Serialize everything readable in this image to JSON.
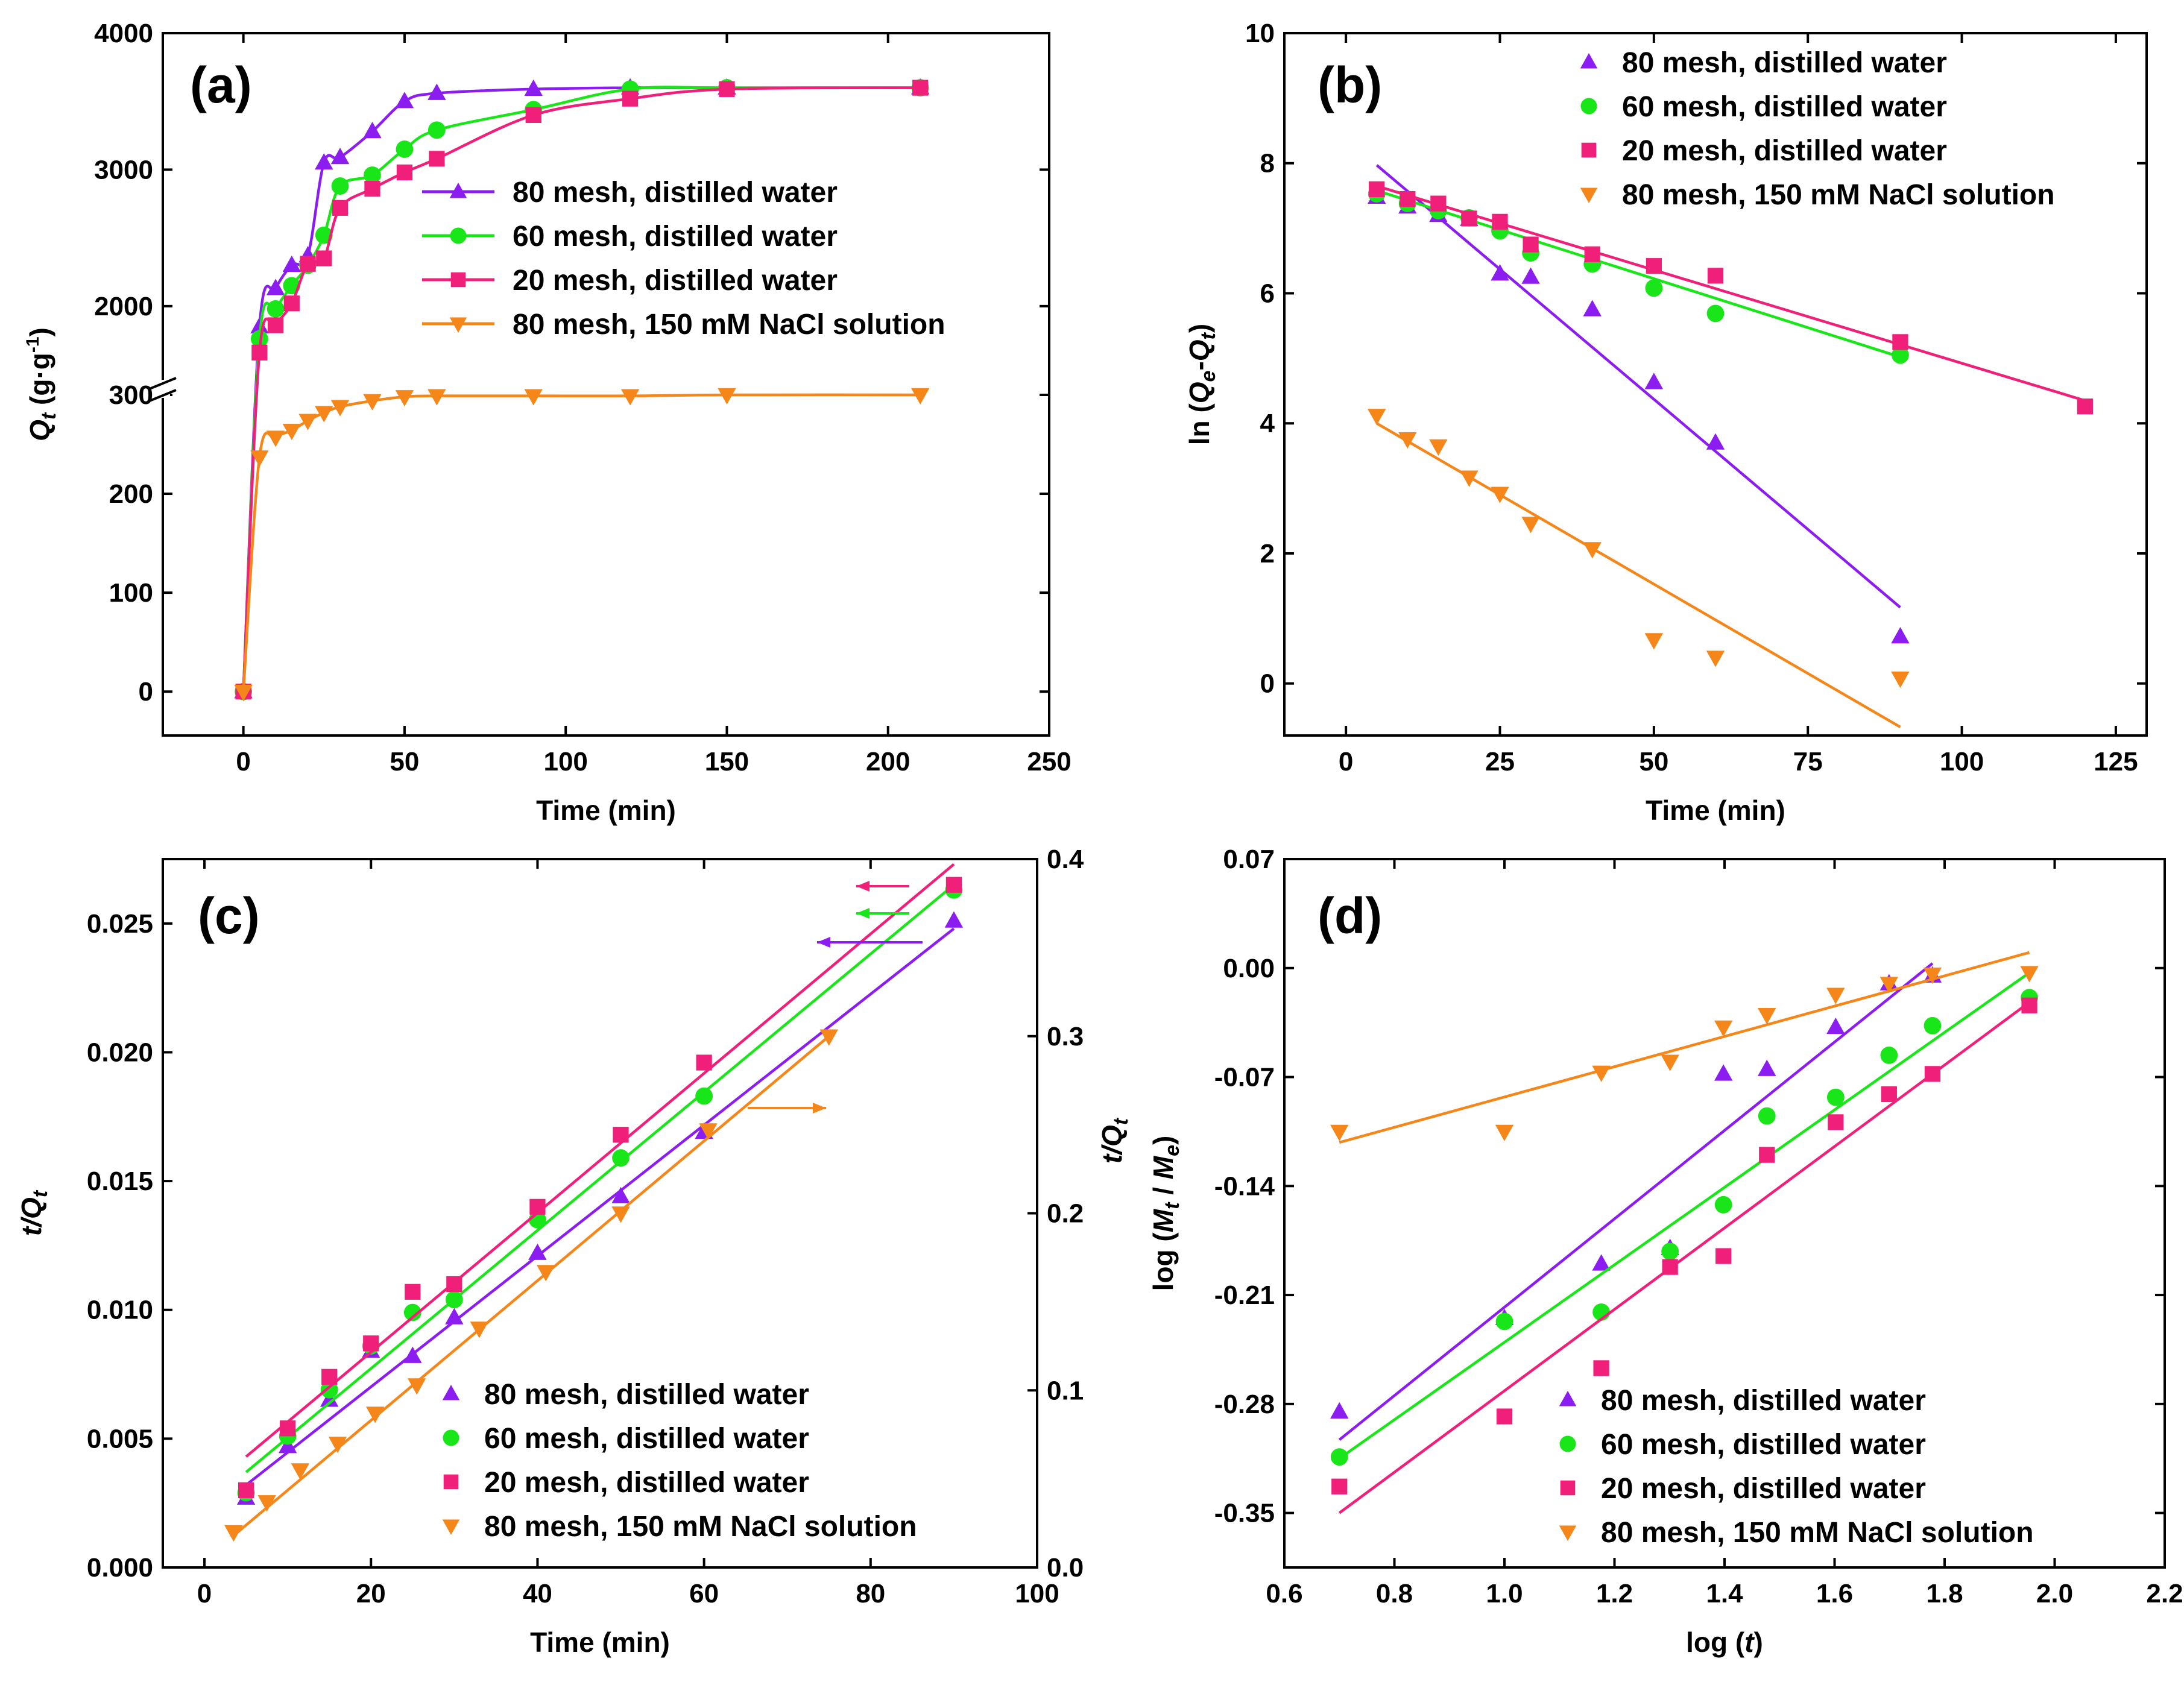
{
  "colors": {
    "m80": "#8b1df0",
    "m60": "#19e619",
    "m20": "#f0207a",
    "nacl": "#f5861a",
    "axis": "#000000"
  },
  "legend_labels": {
    "m80": "80 mesh, distilled water",
    "m60": "60 mesh, distilled water",
    "m20": "20 mesh, distilled water",
    "nacl": "80 mesh, 150 mM NaCl solution"
  },
  "chart_data": [
    {
      "id": "a",
      "panel_label": "(a)",
      "type": "line",
      "xlabel": "Time (min)",
      "ylabel": "Q_t (g·g⁻¹)",
      "xlim": [
        -25,
        250
      ],
      "xticks": [
        0,
        50,
        100,
        150,
        200,
        250
      ],
      "broken_y_axis": true,
      "ylim_upper": [
        1350,
        4000
      ],
      "yticks_upper": [
        2000,
        3000,
        4000
      ],
      "ylim_lower": [
        0,
        300
      ],
      "yticks_lower": [
        0,
        100,
        200,
        300
      ],
      "series": [
        {
          "key": "m80",
          "marker": "triangle-up",
          "x": [
            0,
            5,
            10,
            15,
            20,
            25,
            30,
            40,
            50,
            60,
            90,
            120,
            150,
            210
          ],
          "y": [
            0,
            1850,
            2130,
            2300,
            2370,
            3050,
            3090,
            3280,
            3500,
            3560,
            3590,
            3600,
            3600,
            3600
          ]
        },
        {
          "key": "m60",
          "marker": "circle",
          "x": [
            0,
            5,
            10,
            15,
            20,
            25,
            30,
            40,
            50,
            60,
            90,
            120,
            150,
            210
          ],
          "y": [
            0,
            1760,
            1980,
            2150,
            2300,
            2520,
            2880,
            2960,
            3150,
            3290,
            3440,
            3590,
            3600,
            3600
          ]
        },
        {
          "key": "m20",
          "marker": "square",
          "x": [
            0,
            5,
            10,
            15,
            20,
            25,
            30,
            40,
            50,
            60,
            90,
            120,
            150,
            210
          ],
          "y": [
            0,
            1660,
            1860,
            2020,
            2310,
            2350,
            2720,
            2860,
            2980,
            3080,
            3400,
            3520,
            3590,
            3600
          ]
        },
        {
          "key": "nacl",
          "marker": "triangle-down",
          "x": [
            0,
            5,
            10,
            15,
            20,
            25,
            30,
            40,
            50,
            60,
            90,
            120,
            150,
            210
          ],
          "y": [
            0,
            237,
            257,
            264,
            274,
            282,
            288,
            294,
            298,
            299,
            299,
            299,
            300,
            300
          ]
        }
      ]
    },
    {
      "id": "b",
      "panel_label": "(b)",
      "type": "scatter",
      "xlabel": "Time (min)",
      "ylabel": "ln (Q_e-Q_t)",
      "xlim": [
        -10,
        130
      ],
      "xticks": [
        0,
        25,
        50,
        75,
        100,
        125
      ],
      "ylim": [
        -0.8,
        10
      ],
      "yticks": [
        0,
        2,
        4,
        6,
        8,
        10
      ],
      "series": [
        {
          "key": "m80",
          "marker": "triangle-up",
          "x": [
            5,
            10,
            15,
            20,
            25,
            30,
            40,
            50,
            60,
            90
          ],
          "y": [
            7.48,
            7.33,
            7.2,
            7.14,
            6.3,
            6.25,
            5.75,
            4.63,
            3.7,
            0.72
          ],
          "fit": {
            "x": [
              5,
              90
            ],
            "y": [
              7.97,
              1.17
            ]
          }
        },
        {
          "key": "m60",
          "marker": "circle",
          "x": [
            5,
            10,
            15,
            20,
            25,
            30,
            40,
            50,
            60,
            90
          ],
          "y": [
            7.53,
            7.38,
            7.27,
            7.16,
            6.96,
            6.62,
            6.45,
            6.08,
            5.69,
            5.05
          ],
          "fit": {
            "x": [
              5,
              90
            ],
            "y": [
              7.58,
              5.02
            ]
          }
        },
        {
          "key": "m20",
          "marker": "square",
          "x": [
            5,
            10,
            15,
            20,
            25,
            30,
            40,
            50,
            60,
            90,
            120
          ],
          "y": [
            7.6,
            7.45,
            7.38,
            7.15,
            7.1,
            6.75,
            6.6,
            6.42,
            6.27,
            5.25,
            4.26
          ],
          "fit": {
            "x": [
              5,
              120
            ],
            "y": [
              7.65,
              4.35
            ]
          }
        },
        {
          "key": "nacl",
          "marker": "triangle-down",
          "x": [
            5,
            10,
            15,
            20,
            25,
            30,
            40,
            50,
            60,
            90
          ],
          "y": [
            4.12,
            3.76,
            3.65,
            3.17,
            2.92,
            2.46,
            2.07,
            0.67,
            0.4,
            0.08
          ],
          "fit": {
            "x": [
              5,
              90
            ],
            "y": [
              4.0,
              -0.67
            ]
          }
        }
      ]
    },
    {
      "id": "c",
      "panel_label": "(c)",
      "type": "scatter",
      "xlabel": "Time (min)",
      "ylabel": "t/Q_t",
      "ylabel_right": "t/Q_t",
      "xlim": [
        -5,
        100
      ],
      "xticks": [
        0,
        20,
        40,
        60,
        80,
        100
      ],
      "ylim": [
        0,
        0.0275
      ],
      "yticks": [
        0.0,
        0.005,
        0.01,
        0.015,
        0.02,
        0.025
      ],
      "ytick_labels": [
        "0.000",
        "0.005",
        "0.010",
        "0.015",
        "0.020",
        "0.025"
      ],
      "ylim_right": [
        0,
        0.4
      ],
      "yticks_right": [
        0.0,
        0.1,
        0.2,
        0.3,
        0.4
      ],
      "ytick_labels_right": [
        "0.0",
        "0.1",
        "0.2",
        "0.3",
        "0.4"
      ],
      "series": [
        {
          "key": "m80",
          "axis": "left",
          "marker": "triangle-up",
          "x": [
            5,
            10,
            15,
            20,
            25,
            30,
            40,
            50,
            60,
            90
          ],
          "y": [
            0.0027,
            0.0047,
            0.0065,
            0.0084,
            0.0082,
            0.0097,
            0.0122,
            0.0144,
            0.0169,
            0.0251
          ],
          "fit": {
            "x": [
              5,
              90
            ],
            "y": [
              0.0032,
              0.0248
            ]
          }
        },
        {
          "key": "m60",
          "axis": "left",
          "marker": "circle",
          "x": [
            5,
            10,
            15,
            20,
            25,
            30,
            40,
            50,
            60,
            90
          ],
          "y": [
            0.0029,
            0.0051,
            0.0069,
            0.0086,
            0.0099,
            0.0104,
            0.0135,
            0.0159,
            0.0183,
            0.0263
          ],
          "fit": {
            "x": [
              5,
              90
            ],
            "y": [
              0.0037,
              0.0265
            ]
          }
        },
        {
          "key": "m20",
          "axis": "left",
          "marker": "square",
          "x": [
            5,
            10,
            15,
            20,
            25,
            30,
            40,
            50,
            60,
            90
          ],
          "y": [
            0.003,
            0.0054,
            0.0074,
            0.0087,
            0.0107,
            0.011,
            0.014,
            0.0168,
            0.0196,
            0.0265
          ],
          "fit": {
            "x": [
              5,
              90
            ],
            "y": [
              0.0043,
              0.0273
            ]
          }
        },
        {
          "key": "nacl",
          "axis": "right",
          "marker": "triangle-down",
          "x": [
            3.5,
            7.5,
            11.5,
            16,
            20.5,
            25.5,
            33,
            41,
            50,
            60.5,
            75
          ],
          "y": [
            0.02,
            0.037,
            0.055,
            0.07,
            0.087,
            0.103,
            0.135,
            0.167,
            0.2,
            0.247,
            0.3
          ],
          "fit": {
            "x": [
              3.5,
              75
            ],
            "y": [
              0.018,
              0.3
            ]
          }
        }
      ]
    },
    {
      "id": "d",
      "panel_label": "(d)",
      "type": "scatter",
      "xlabel": "log (t)",
      "ylabel": "log (M_t / M_e)",
      "xlim": [
        0.6,
        2.2
      ],
      "xticks": [
        0.6,
        0.8,
        1.0,
        1.2,
        1.4,
        1.6,
        1.8,
        2.0,
        2.2
      ],
      "xtick_labels": [
        "0.6",
        "0.8",
        "1.0",
        "1.2",
        "1.4",
        "1.6",
        "1.8",
        "2.0",
        "2.2"
      ],
      "ylim": [
        -0.385,
        0.07
      ],
      "yticks": [
        -0.35,
        -0.28,
        -0.21,
        -0.14,
        -0.07,
        0.0,
        0.07
      ],
      "ytick_labels": [
        "-0.35",
        "-0.28",
        "-0.21",
        "-0.14",
        "-0.07",
        "0.00",
        "0.07"
      ],
      "series": [
        {
          "key": "m80",
          "marker": "triangle-up",
          "x": [
            0.7,
            1.0,
            1.176,
            1.301,
            1.398,
            1.477,
            1.602,
            1.699,
            1.778
          ],
          "y": [
            -0.285,
            -0.225,
            -0.19,
            -0.18,
            -0.068,
            -0.065,
            -0.038,
            -0.01,
            -0.005
          ],
          "fit": {
            "x": [
              0.7,
              1.778
            ],
            "y": [
              -0.303,
              0.003
            ]
          }
        },
        {
          "key": "m60",
          "marker": "circle",
          "x": [
            0.7,
            1.0,
            1.176,
            1.301,
            1.398,
            1.477,
            1.602,
            1.699,
            1.778,
            1.954
          ],
          "y": [
            -0.314,
            -0.227,
            -0.221,
            -0.182,
            -0.152,
            -0.095,
            -0.083,
            -0.056,
            -0.037,
            -0.019
          ],
          "fit": {
            "x": [
              0.7,
              1.954
            ],
            "y": [
              -0.315,
              -0.003
            ]
          }
        },
        {
          "key": "m20",
          "marker": "square",
          "x": [
            0.7,
            1.0,
            1.176,
            1.301,
            1.398,
            1.477,
            1.602,
            1.699,
            1.778,
            1.954
          ],
          "y": [
            -0.333,
            -0.288,
            -0.257,
            -0.192,
            -0.185,
            -0.12,
            -0.099,
            -0.081,
            -0.068,
            -0.024
          ],
          "fit": {
            "x": [
              0.7,
              1.954
            ],
            "y": [
              -0.35,
              -0.022
            ]
          }
        },
        {
          "key": "nacl",
          "marker": "triangle-down",
          "x": [
            0.7,
            1.0,
            1.176,
            1.301,
            1.398,
            1.477,
            1.602,
            1.699,
            1.778,
            1.954
          ],
          "y": [
            -0.105,
            -0.105,
            -0.067,
            -0.06,
            -0.038,
            -0.03,
            -0.017,
            -0.01,
            -0.004,
            -0.003
          ],
          "fit": {
            "x": [
              0.7,
              1.954
            ],
            "y": [
              -0.112,
              0.01
            ]
          }
        }
      ]
    }
  ]
}
